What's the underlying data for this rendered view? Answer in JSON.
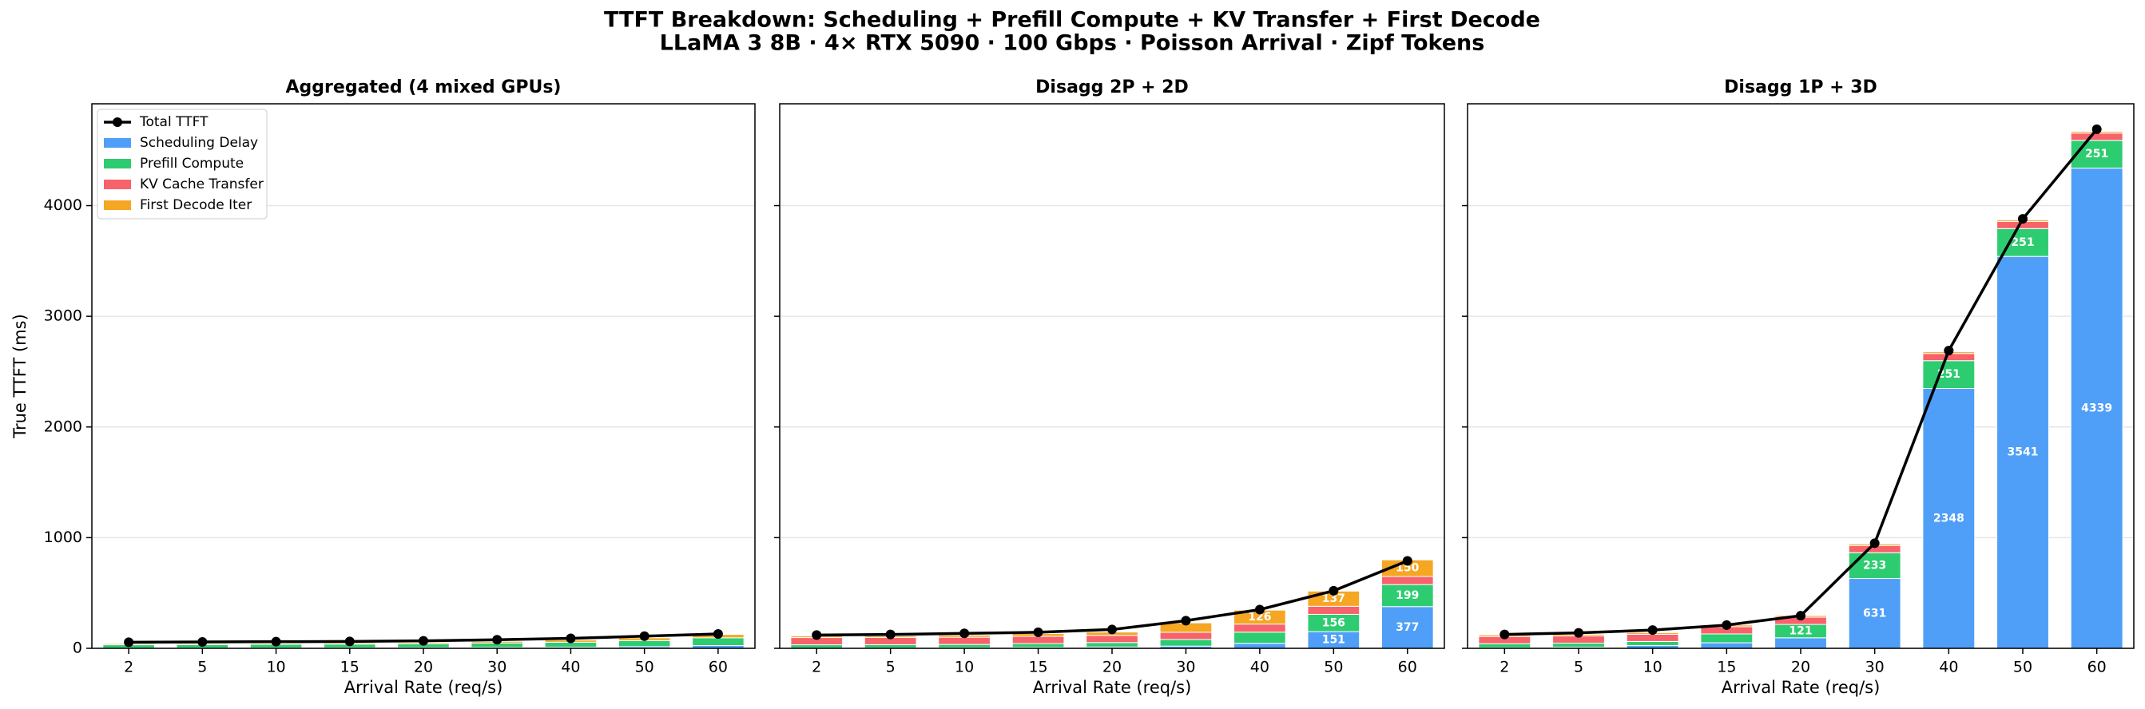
{
  "title": "TTFT Breakdown: Scheduling + Prefill Compute + KV Transfer + First Decode",
  "subtitle": "LLaMA 3 8B · 4× RTX 5090 · 100 Gbps · Poisson Arrival · Zipf Tokens",
  "chart_data": [
    {
      "type": "bar",
      "stacked": true,
      "title": "Aggregated (4 mixed GPUs)",
      "x_label": "Arrival Rate (req/s)",
      "y_label": "True TTFT (ms)",
      "categories": [
        "2",
        "5",
        "10",
        "15",
        "20",
        "30",
        "40",
        "50",
        "60"
      ],
      "ylim": [
        0,
        4920
      ],
      "yticks": [
        0,
        1000,
        2000,
        3000,
        4000
      ],
      "ytick_labels": true,
      "grid": true,
      "legend": "upper left",
      "series": [
        {
          "name": "Total TTFT",
          "type": "line",
          "color": "#000000",
          "values": [
            55,
            58,
            60,
            62,
            68,
            78,
            90,
            110,
            130
          ]
        },
        {
          "name": "Scheduling Delay",
          "color": "#4f9ff8",
          "values": [
            2,
            3,
            4,
            5,
            6,
            8,
            10,
            15,
            25
          ]
        },
        {
          "name": "Prefill Compute",
          "color": "#2ecc71",
          "values": [
            30,
            30,
            32,
            33,
            35,
            40,
            45,
            55,
            70
          ]
        },
        {
          "name": "KV Cache Transfer",
          "color": "#f8626b",
          "values": [
            0,
            0,
            0,
            0,
            0,
            0,
            0,
            0,
            0
          ]
        },
        {
          "name": "First Decode Iter",
          "color": "#f5a623",
          "values": [
            10,
            10,
            10,
            12,
            12,
            15,
            20,
            25,
            30
          ]
        }
      ]
    },
    {
      "type": "bar",
      "stacked": true,
      "title": "Disagg 2P + 2D",
      "x_label": "Arrival Rate (req/s)",
      "categories": [
        "2",
        "5",
        "10",
        "15",
        "20",
        "30",
        "40",
        "50",
        "60"
      ],
      "ylim": [
        0,
        4920
      ],
      "yticks": [
        0,
        1000,
        2000,
        3000,
        4000
      ],
      "ytick_labels": false,
      "grid": true,
      "series": [
        {
          "type": "line",
          "color": "#000000",
          "values": [
            120,
            125,
            135,
            145,
            170,
            250,
            350,
            520,
            790
          ]
        },
        {
          "color": "#4f9ff8",
          "values": [
            2,
            3,
            5,
            8,
            12,
            20,
            45,
            151,
            377
          ]
        },
        {
          "color": "#2ecc71",
          "values": [
            30,
            30,
            30,
            35,
            40,
            60,
            101,
            156,
            199
          ]
        },
        {
          "color": "#f8626b",
          "values": [
            65,
            65,
            65,
            65,
            65,
            65,
            73,
            73,
            73
          ]
        },
        {
          "color": "#f5a623",
          "values": [
            15,
            15,
            20,
            25,
            30,
            85,
            126,
            137,
            150
          ]
        }
      ]
    },
    {
      "type": "bar",
      "stacked": true,
      "title": "Disagg 1P + 3D",
      "x_label": "Arrival Rate (req/s)",
      "categories": [
        "2",
        "5",
        "10",
        "15",
        "20",
        "30",
        "40",
        "50",
        "60"
      ],
      "ylim": [
        0,
        4920
      ],
      "yticks": [
        0,
        1000,
        2000,
        3000,
        4000
      ],
      "ytick_labels": false,
      "grid": true,
      "series": [
        {
          "type": "line",
          "color": "#000000",
          "values": [
            125,
            140,
            165,
            210,
            295,
            950,
            2690,
            3880,
            4690
          ]
        },
        {
          "color": "#4f9ff8",
          "values": [
            5,
            10,
            25,
            50,
            95,
            631,
            2348,
            3541,
            4339
          ]
        },
        {
          "color": "#2ecc71",
          "values": [
            37,
            37,
            37,
            80,
            121,
            233,
            251,
            251,
            251
          ]
        },
        {
          "color": "#f8626b",
          "values": [
            65,
            65,
            65,
            65,
            65,
            65,
            65,
            65,
            65
          ]
        },
        {
          "color": "#f5a623",
          "values": [
            15,
            15,
            15,
            15,
            15,
            15,
            15,
            15,
            15
          ]
        }
      ]
    }
  ]
}
